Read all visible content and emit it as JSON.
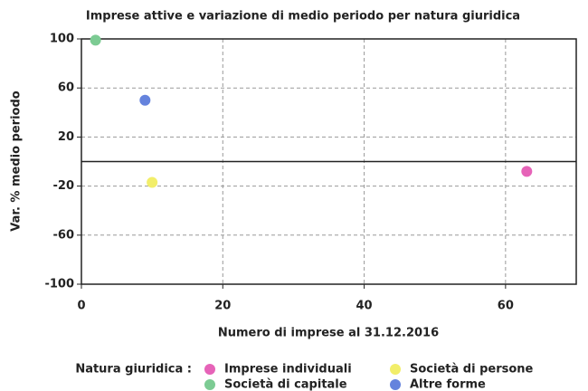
{
  "chart_data": {
    "type": "scatter",
    "title": "Imprese attive e variazione di medio periodo per natura giuridica",
    "x_label": "Numero di imprese al 31.12.2016",
    "y_label": "Var. % medio periodo",
    "legend_title": "Natura giuridica :",
    "series": [
      {
        "name": "Imprese individuali",
        "color": "#e663b8",
        "x": [
          63
        ],
        "y": [
          -8
        ]
      },
      {
        "name": "Società di persone",
        "color": "#f2ee6a",
        "x": [
          10
        ],
        "y": [
          -17
        ]
      },
      {
        "name": "Società di capitale",
        "color": "#7ccb93",
        "x": [
          2
        ],
        "y": [
          99
        ]
      },
      {
        "name": "Altre forme",
        "color": "#6583dd",
        "x": [
          9
        ],
        "y": [
          50
        ]
      }
    ],
    "xlim": [
      0,
      70
    ],
    "xticks": [
      0,
      20,
      40,
      60
    ],
    "ylim": [
      -100,
      100
    ],
    "yticks": [
      -100,
      -60,
      -20,
      20,
      60,
      100
    ],
    "reference_line": 0,
    "grid": true
  }
}
